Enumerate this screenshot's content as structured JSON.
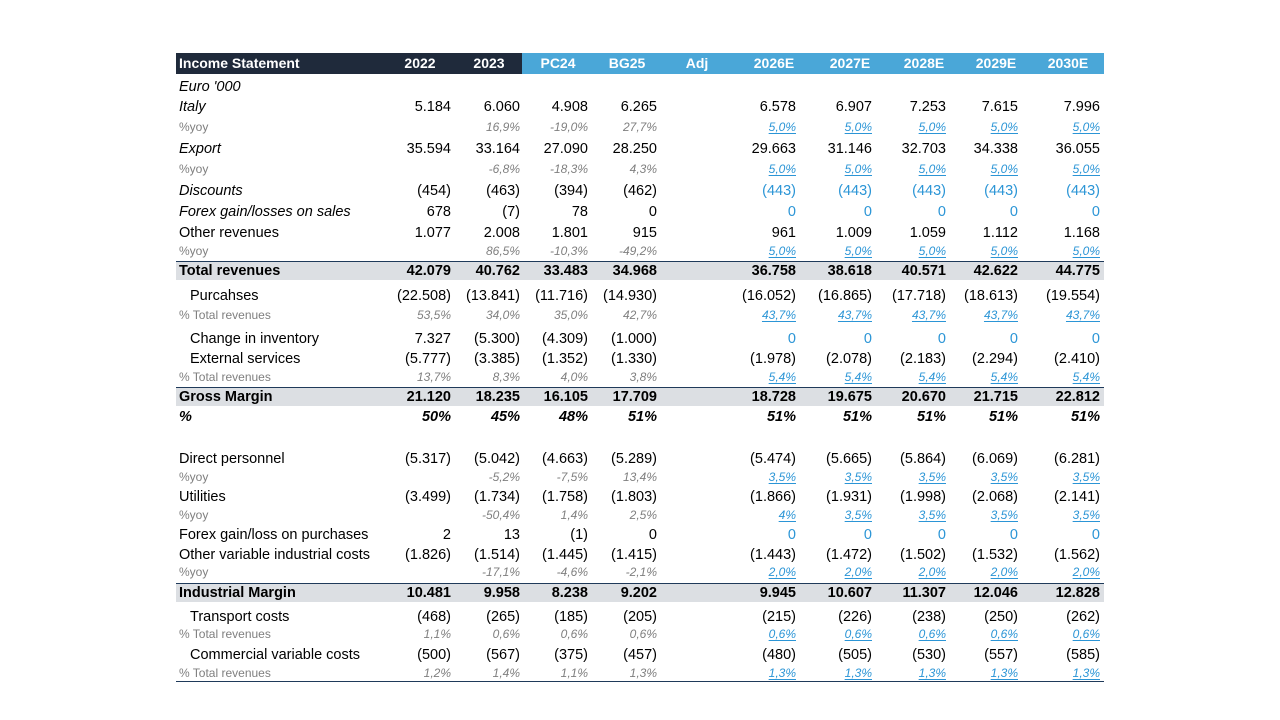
{
  "header": {
    "title": "Income Statement",
    "cols": [
      "2022",
      "2023",
      "PC24",
      "BG25",
      "Adj",
      "2026E",
      "2027E",
      "2028E",
      "2029E",
      "2030E"
    ]
  },
  "units": "Euro '000",
  "rows": {
    "italy": {
      "label": "Italy",
      "v": [
        "5.184",
        "6.060",
        "4.908",
        "6.265",
        "",
        "6.578",
        "6.907",
        "7.253",
        "7.615",
        "7.996"
      ]
    },
    "italy_yoy": {
      "label": "%yoy",
      "v": [
        "",
        "16,9%",
        "-19,0%",
        "27,7%",
        "",
        "5,0%",
        "5,0%",
        "5,0%",
        "5,0%",
        "5,0%"
      ]
    },
    "export": {
      "label": "Export",
      "v": [
        "35.594",
        "33.164",
        "27.090",
        "28.250",
        "",
        "29.663",
        "31.146",
        "32.703",
        "34.338",
        "36.055"
      ]
    },
    "export_yoy": {
      "label": "%yoy",
      "v": [
        "",
        "-6,8%",
        "-18,3%",
        "4,3%",
        "",
        "5,0%",
        "5,0%",
        "5,0%",
        "5,0%",
        "5,0%"
      ]
    },
    "discounts": {
      "label": "Discounts",
      "v": [
        "(454)",
        "(463)",
        "(394)",
        "(462)",
        "",
        "(443)",
        "(443)",
        "(443)",
        "(443)",
        "(443)"
      ]
    },
    "forex_sales": {
      "label": "Forex gain/losses on sales",
      "v": [
        "678",
        "(7)",
        "78",
        "0",
        "",
        "0",
        "0",
        "0",
        "0",
        "0"
      ]
    },
    "other_rev": {
      "label": "Other revenues",
      "v": [
        "1.077",
        "2.008",
        "1.801",
        "915",
        "",
        "961",
        "1.009",
        "1.059",
        "1.112",
        "1.168"
      ]
    },
    "other_rev_yoy": {
      "label": "%yoy",
      "v": [
        "",
        "86,5%",
        "-10,3%",
        "-49,2%",
        "",
        "5,0%",
        "5,0%",
        "5,0%",
        "5,0%",
        "5,0%"
      ]
    },
    "total_rev": {
      "label": "Total revenues",
      "v": [
        "42.079",
        "40.762",
        "33.483",
        "34.968",
        "",
        "36.758",
        "38.618",
        "40.571",
        "42.622",
        "44.775"
      ]
    },
    "purchases": {
      "label": "Purcahses",
      "v": [
        "(22.508)",
        "(13.841)",
        "(11.716)",
        "(14.930)",
        "",
        "(16.052)",
        "(16.865)",
        "(17.718)",
        "(18.613)",
        "(19.554)"
      ]
    },
    "purchases_pct": {
      "label": "% Total revenues",
      "v": [
        "53,5%",
        "34,0%",
        "35,0%",
        "42,7%",
        "",
        "43,7%",
        "43,7%",
        "43,7%",
        "43,7%",
        "43,7%"
      ]
    },
    "inventory": {
      "label": "Change in inventory",
      "v": [
        "7.327",
        "(5.300)",
        "(4.309)",
        "(1.000)",
        "",
        "0",
        "0",
        "0",
        "0",
        "0"
      ]
    },
    "external": {
      "label": "External services",
      "v": [
        "(5.777)",
        "(3.385)",
        "(1.352)",
        "(1.330)",
        "",
        "(1.978)",
        "(2.078)",
        "(2.183)",
        "(2.294)",
        "(2.410)"
      ]
    },
    "external_pct": {
      "label": "% Total revenues",
      "v": [
        "13,7%",
        "8,3%",
        "4,0%",
        "3,8%",
        "",
        "5,4%",
        "5,4%",
        "5,4%",
        "5,4%",
        "5,4%"
      ]
    },
    "gross": {
      "label": "Gross Margin",
      "v": [
        "21.120",
        "18.235",
        "16.105",
        "17.709",
        "",
        "18.728",
        "19.675",
        "20.670",
        "21.715",
        "22.812"
      ]
    },
    "gross_pct": {
      "label": "%",
      "v": [
        "50%",
        "45%",
        "48%",
        "51%",
        "",
        "51%",
        "51%",
        "51%",
        "51%",
        "51%"
      ]
    },
    "direct": {
      "label": "Direct personnel",
      "v": [
        "(5.317)",
        "(5.042)",
        "(4.663)",
        "(5.289)",
        "",
        "(5.474)",
        "(5.665)",
        "(5.864)",
        "(6.069)",
        "(6.281)"
      ]
    },
    "direct_yoy": {
      "label": "%yoy",
      "v": [
        "",
        "-5,2%",
        "-7,5%",
        "13,4%",
        "",
        "3,5%",
        "3,5%",
        "3,5%",
        "3,5%",
        "3,5%"
      ]
    },
    "utilities": {
      "label": "Utilities",
      "v": [
        "(3.499)",
        "(1.734)",
        "(1.758)",
        "(1.803)",
        "",
        "(1.866)",
        "(1.931)",
        "(1.998)",
        "(2.068)",
        "(2.141)"
      ]
    },
    "utilities_yoy": {
      "label": "%yoy",
      "v": [
        "",
        "-50,4%",
        "1,4%",
        "2,5%",
        "",
        "4%",
        "3,5%",
        "3,5%",
        "3,5%",
        "3,5%"
      ]
    },
    "forex_purch": {
      "label": "Forex gain/loss on purchases",
      "v": [
        "2",
        "13",
        "(1)",
        "0",
        "",
        "0",
        "0",
        "0",
        "0",
        "0"
      ]
    },
    "other_var": {
      "label": "Other variable industrial costs",
      "v": [
        "(1.826)",
        "(1.514)",
        "(1.445)",
        "(1.415)",
        "",
        "(1.443)",
        "(1.472)",
        "(1.502)",
        "(1.532)",
        "(1.562)"
      ]
    },
    "other_var_yoy": {
      "label": "%yoy",
      "v": [
        "",
        "-17,1%",
        "-4,6%",
        "-2,1%",
        "",
        "2,0%",
        "2,0%",
        "2,0%",
        "2,0%",
        "2,0%"
      ]
    },
    "industrial": {
      "label": "Industrial Margin",
      "v": [
        "10.481",
        "9.958",
        "8.238",
        "9.202",
        "",
        "9.945",
        "10.607",
        "11.307",
        "12.046",
        "12.828"
      ]
    },
    "transport": {
      "label": "Transport costs",
      "v": [
        "(468)",
        "(265)",
        "(185)",
        "(205)",
        "",
        "(215)",
        "(226)",
        "(238)",
        "(250)",
        "(262)"
      ]
    },
    "transport_pct": {
      "label": "% Total revenues",
      "v": [
        "1,1%",
        "0,6%",
        "0,6%",
        "0,6%",
        "",
        "0,6%",
        "0,6%",
        "0,6%",
        "0,6%",
        "0,6%"
      ]
    },
    "commercial": {
      "label": "Commercial variable costs",
      "v": [
        "(500)",
        "(567)",
        "(375)",
        "(457)",
        "",
        "(480)",
        "(505)",
        "(530)",
        "(557)",
        "(585)"
      ]
    },
    "commercial_pct": {
      "label": "% Total revenues",
      "v": [
        "1,2%",
        "1,4%",
        "1,1%",
        "1,3%",
        "",
        "1,3%",
        "1,3%",
        "1,3%",
        "1,3%",
        "1,3%"
      ]
    }
  },
  "colors": {
    "header_dark": "#1f2a3b",
    "header_blue": "#4aa7d8",
    "forecast_blue": "#2b95d6",
    "total_bg": "#dcdfe3"
  }
}
